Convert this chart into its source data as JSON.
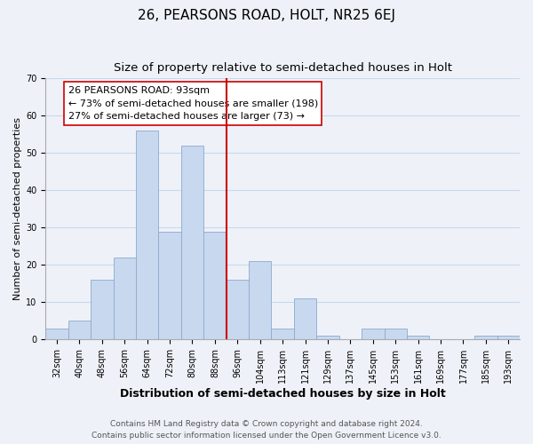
{
  "title": "26, PEARSONS ROAD, HOLT, NR25 6EJ",
  "subtitle": "Size of property relative to semi-detached houses in Holt",
  "xlabel": "Distribution of semi-detached houses by size in Holt",
  "ylabel": "Number of semi-detached properties",
  "bin_labels": [
    "32sqm",
    "40sqm",
    "48sqm",
    "56sqm",
    "64sqm",
    "72sqm",
    "80sqm",
    "88sqm",
    "96sqm",
    "104sqm",
    "113sqm",
    "121sqm",
    "129sqm",
    "137sqm",
    "145sqm",
    "153sqm",
    "161sqm",
    "169sqm",
    "177sqm",
    "185sqm",
    "193sqm"
  ],
  "bar_heights": [
    3,
    5,
    16,
    22,
    56,
    29,
    52,
    29,
    16,
    21,
    3,
    11,
    1,
    0,
    3,
    3,
    1,
    0,
    0,
    1,
    1
  ],
  "bar_color": "#c8d8ee",
  "bar_edge_color": "#8aaad0",
  "vline_x": 8.5,
  "vline_color": "#cc0000",
  "annotation_text_line1": "26 PEARSONS ROAD: 93sqm",
  "annotation_text_line2": "← 73% of semi-detached houses are smaller (198)",
  "annotation_text_line3": "27% of semi-detached houses are larger (73) →",
  "ylim": [
    0,
    70
  ],
  "yticks": [
    0,
    10,
    20,
    30,
    40,
    50,
    60,
    70
  ],
  "grid_color": "#c8d8ee",
  "background_color": "#eef2f8",
  "footer_line1": "Contains HM Land Registry data © Crown copyright and database right 2024.",
  "footer_line2": "Contains public sector information licensed under the Open Government Licence v3.0.",
  "title_fontsize": 11,
  "subtitle_fontsize": 9.5,
  "xlabel_fontsize": 9,
  "ylabel_fontsize": 8,
  "tick_fontsize": 7,
  "annotation_fontsize": 8,
  "footer_fontsize": 6.5
}
